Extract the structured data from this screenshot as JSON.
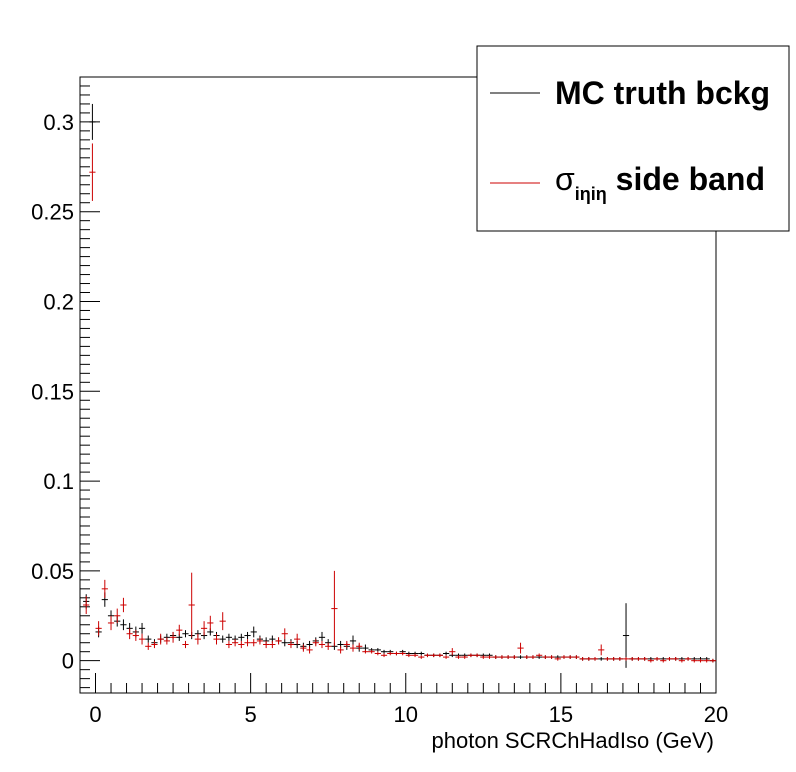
{
  "chart_data": {
    "type": "scatter",
    "style": "histogram with error bars",
    "xlabel": "photon SCRChHadIso (GeV)",
    "ylabel": "",
    "xlim": [
      -0.5,
      20
    ],
    "ylim": [
      -0.018,
      0.325
    ],
    "x_ticks": [
      "0",
      "5",
      "10",
      "15",
      "20"
    ],
    "y_ticks": [
      "0",
      "0.05",
      "0.1",
      "0.15",
      "0.2",
      "0.25",
      "0.3"
    ],
    "legend": {
      "placement": "top-right",
      "entries": [
        {
          "label": "MC truth bckg",
          "color": "#000000"
        },
        {
          "label_symbol": "σ",
          "label_sub": "iηiη",
          "label_rest": " side band",
          "color": "#cc0000"
        }
      ]
    },
    "series": [
      {
        "name": "MC truth bckg",
        "color": "#000000",
        "bin_width": 0.2,
        "x": [
          -0.3,
          -0.1,
          0.1,
          0.3,
          0.5,
          0.7,
          0.9,
          1.1,
          1.3,
          1.5,
          1.7,
          1.9,
          2.1,
          2.3,
          2.5,
          2.7,
          2.9,
          3.1,
          3.3,
          3.5,
          3.7,
          3.9,
          4.1,
          4.3,
          4.5,
          4.7,
          4.9,
          5.1,
          5.3,
          5.5,
          5.7,
          5.9,
          6.1,
          6.3,
          6.5,
          6.7,
          6.9,
          7.1,
          7.3,
          7.5,
          7.7,
          7.9,
          8.1,
          8.3,
          8.5,
          8.7,
          8.9,
          9.1,
          9.3,
          9.5,
          9.7,
          9.9,
          10.1,
          10.3,
          10.5,
          10.7,
          10.9,
          11.1,
          11.3,
          11.5,
          11.7,
          11.9,
          12.1,
          12.3,
          12.5,
          12.7,
          12.9,
          13.1,
          13.3,
          13.5,
          13.7,
          13.9,
          14.1,
          14.3,
          14.5,
          14.7,
          14.9,
          15.1,
          15.3,
          15.5,
          15.7,
          15.9,
          16.1,
          16.3,
          16.5,
          16.7,
          16.9,
          17.1,
          17.3,
          17.5,
          17.7,
          17.9,
          18.1,
          18.3,
          18.5,
          18.7,
          18.9,
          19.1,
          19.3,
          19.5,
          19.7,
          19.9
        ],
        "y": [
          0.033,
          0.3,
          0.016,
          0.034,
          0.025,
          0.022,
          0.02,
          0.018,
          0.016,
          0.018,
          0.012,
          0.01,
          0.012,
          0.013,
          0.014,
          0.013,
          0.015,
          0.014,
          0.015,
          0.014,
          0.016,
          0.014,
          0.012,
          0.013,
          0.012,
          0.013,
          0.014,
          0.016,
          0.012,
          0.011,
          0.012,
          0.011,
          0.01,
          0.01,
          0.009,
          0.008,
          0.009,
          0.011,
          0.013,
          0.01,
          0.008,
          0.009,
          0.008,
          0.011,
          0.007,
          0.007,
          0.006,
          0.006,
          0.005,
          0.005,
          0.004,
          0.005,
          0.004,
          0.004,
          0.004,
          0.003,
          0.003,
          0.003,
          0.004,
          0.003,
          0.003,
          0.003,
          0.003,
          0.003,
          0.003,
          0.003,
          0.002,
          0.002,
          0.002,
          0.002,
          0.002,
          0.002,
          0.002,
          0.002,
          0.002,
          0.002,
          0.002,
          0.002,
          0.002,
          0.002,
          0.001,
          0.001,
          0.001,
          0.001,
          0.001,
          0.001,
          0.001,
          0.014,
          0.001,
          0.001,
          0.001,
          0.001,
          0.001,
          0.001,
          0.001,
          0.001,
          0.001,
          0.001,
          0.001,
          0.001,
          0.001,
          0.0
        ],
        "err": [
          0.004,
          0.01,
          0.003,
          0.004,
          0.003,
          0.003,
          0.003,
          0.003,
          0.003,
          0.003,
          0.002,
          0.002,
          0.002,
          0.002,
          0.002,
          0.002,
          0.002,
          0.002,
          0.002,
          0.002,
          0.002,
          0.002,
          0.002,
          0.002,
          0.002,
          0.002,
          0.002,
          0.003,
          0.002,
          0.002,
          0.002,
          0.002,
          0.002,
          0.002,
          0.002,
          0.002,
          0.002,
          0.002,
          0.003,
          0.002,
          0.002,
          0.002,
          0.002,
          0.003,
          0.002,
          0.002,
          0.001,
          0.001,
          0.001,
          0.001,
          0.001,
          0.001,
          0.001,
          0.001,
          0.001,
          0.001,
          0.001,
          0.001,
          0.001,
          0.001,
          0.001,
          0.001,
          0.001,
          0.001,
          0.001,
          0.001,
          0.001,
          0.001,
          0.001,
          0.001,
          0.001,
          0.001,
          0.001,
          0.001,
          0.001,
          0.001,
          0.001,
          0.001,
          0.001,
          0.001,
          0.001,
          0.001,
          0.001,
          0.001,
          0.001,
          0.001,
          0.001,
          0.018,
          0.001,
          0.001,
          0.001,
          0.001,
          0.001,
          0.001,
          0.001,
          0.001,
          0.001,
          0.001,
          0.001,
          0.001,
          0.001,
          0.001
        ]
      },
      {
        "name": "σiηiη side band",
        "color": "#cc0000",
        "bin_width": 0.2,
        "x": [
          -0.3,
          -0.1,
          0.1,
          0.3,
          0.5,
          0.7,
          0.9,
          1.1,
          1.3,
          1.5,
          1.7,
          1.9,
          2.1,
          2.3,
          2.5,
          2.7,
          2.9,
          3.1,
          3.3,
          3.5,
          3.7,
          3.9,
          4.1,
          4.3,
          4.5,
          4.7,
          4.9,
          5.1,
          5.3,
          5.5,
          5.7,
          5.9,
          6.1,
          6.3,
          6.5,
          6.7,
          6.9,
          7.1,
          7.3,
          7.5,
          7.7,
          7.9,
          8.1,
          8.3,
          8.5,
          8.7,
          8.9,
          9.1,
          9.3,
          9.5,
          9.7,
          9.9,
          10.1,
          10.3,
          10.5,
          10.7,
          10.9,
          11.1,
          11.3,
          11.5,
          11.7,
          11.9,
          12.1,
          12.3,
          12.5,
          12.7,
          12.9,
          13.1,
          13.3,
          13.5,
          13.7,
          13.9,
          14.1,
          14.3,
          14.5,
          14.7,
          14.9,
          15.1,
          15.3,
          15.5,
          15.7,
          15.9,
          16.1,
          16.3,
          16.5,
          16.7,
          16.9,
          17.1,
          17.3,
          17.5,
          17.7,
          17.9,
          18.1,
          18.3,
          18.5,
          18.7,
          18.9,
          19.1,
          19.3,
          19.5,
          19.7,
          19.9
        ],
        "y": [
          0.031,
          0.272,
          0.018,
          0.04,
          0.021,
          0.025,
          0.031,
          0.015,
          0.014,
          0.012,
          0.008,
          0.009,
          0.012,
          0.011,
          0.013,
          0.017,
          0.009,
          0.031,
          0.012,
          0.018,
          0.021,
          0.012,
          0.022,
          0.009,
          0.01,
          0.009,
          0.01,
          0.01,
          0.011,
          0.009,
          0.009,
          0.011,
          0.015,
          0.009,
          0.012,
          0.007,
          0.006,
          0.01,
          0.009,
          0.008,
          0.029,
          0.006,
          0.009,
          0.007,
          0.008,
          0.005,
          0.005,
          0.004,
          0.003,
          0.004,
          0.004,
          0.004,
          0.003,
          0.003,
          0.002,
          0.003,
          0.003,
          0.003,
          0.002,
          0.005,
          0.002,
          0.002,
          0.003,
          0.003,
          0.002,
          0.002,
          0.002,
          0.002,
          0.002,
          0.002,
          0.007,
          0.002,
          0.002,
          0.003,
          0.002,
          0.002,
          0.001,
          0.002,
          0.002,
          0.002,
          0.001,
          0.001,
          0.001,
          0.006,
          0.001,
          0.001,
          0.001,
          0.001,
          0.001,
          0.001,
          0.001,
          0.0,
          0.001,
          0.0,
          0.001,
          0.001,
          0.0,
          0.001,
          0.0,
          0.0,
          0.0,
          0.0
        ],
        "err": [
          0.005,
          0.016,
          0.004,
          0.005,
          0.004,
          0.004,
          0.004,
          0.003,
          0.003,
          0.003,
          0.002,
          0.002,
          0.003,
          0.002,
          0.003,
          0.003,
          0.002,
          0.018,
          0.003,
          0.004,
          0.004,
          0.003,
          0.005,
          0.002,
          0.002,
          0.002,
          0.002,
          0.002,
          0.002,
          0.002,
          0.002,
          0.002,
          0.003,
          0.002,
          0.003,
          0.002,
          0.002,
          0.002,
          0.002,
          0.002,
          0.021,
          0.002,
          0.002,
          0.002,
          0.002,
          0.001,
          0.001,
          0.001,
          0.001,
          0.001,
          0.001,
          0.001,
          0.001,
          0.001,
          0.001,
          0.001,
          0.001,
          0.001,
          0.001,
          0.002,
          0.001,
          0.001,
          0.001,
          0.001,
          0.001,
          0.001,
          0.001,
          0.001,
          0.001,
          0.001,
          0.003,
          0.001,
          0.001,
          0.001,
          0.001,
          0.001,
          0.001,
          0.001,
          0.001,
          0.001,
          0.001,
          0.001,
          0.001,
          0.003,
          0.001,
          0.001,
          0.001,
          0.001,
          0.001,
          0.001,
          0.001,
          0.001,
          0.001,
          0.001,
          0.001,
          0.001,
          0.001,
          0.001,
          0.001,
          0.001,
          0.001,
          0.001
        ]
      }
    ]
  }
}
